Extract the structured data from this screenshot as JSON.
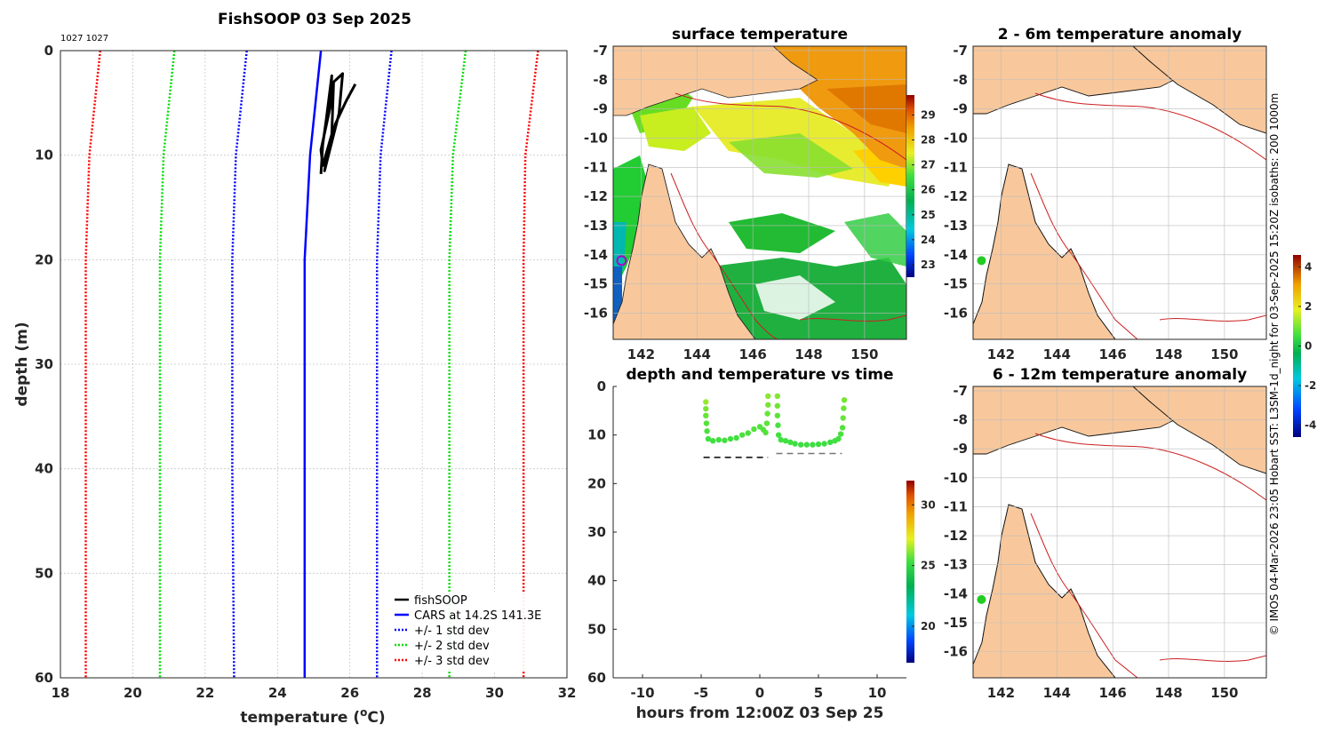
{
  "colors": {
    "fishsoop": "#000000",
    "cars": "#0000ff",
    "std1": "#0000ff",
    "std2": "#00dd00",
    "std3": "#ff0000",
    "land": "#f8c89c",
    "isobath": "#cc2020"
  },
  "chart_data": [
    {
      "type": "line",
      "id": "profile",
      "title": "FishSOOP 03 Sep 2025",
      "subtitle": "1027 1027",
      "xlabel": "temperature (°C)",
      "ylabel": "depth (m)",
      "xlim": [
        18,
        32
      ],
      "ylim": [
        0,
        60
      ],
      "y_reversed": true,
      "xticks": [
        "18",
        "20",
        "22",
        "24",
        "26",
        "28",
        "30",
        "32"
      ],
      "yticks": [
        "0",
        "10",
        "20",
        "30",
        "40",
        "50",
        "60"
      ],
      "series": [
        {
          "name": "fishSOOP",
          "style": "solid",
          "color": "#000000",
          "x": [
            25.2,
            25.25,
            25.35,
            25.5,
            25.45,
            25.2,
            25.25,
            25.5,
            25.55,
            25.8,
            25.7,
            25.3,
            25.35,
            25.6,
            25.9,
            26.15
          ],
          "y": [
            11.8,
            9.0,
            6.5,
            2.4,
            5.5,
            9.5,
            11.0,
            8.0,
            3.0,
            2.2,
            6.0,
            11.5,
            10.5,
            7.0,
            4.8,
            3.2
          ]
        },
        {
          "name": "CARS at 14.2S 141.3E",
          "style": "solid",
          "color": "#0000ff",
          "x": [
            25.2,
            24.9,
            24.75,
            24.75,
            24.75
          ],
          "y": [
            0,
            10,
            20,
            40,
            60
          ]
        },
        {
          "name": "+/- 1 std dev",
          "style": "dotted",
          "color": "#0000ff",
          "x": [
            23.15,
            22.85,
            22.75,
            22.75,
            22.8
          ],
          "y": [
            0,
            10,
            20,
            40,
            60
          ],
          "x2": [
            27.15,
            26.85,
            26.75,
            26.75,
            26.75
          ],
          "y2": [
            0,
            10,
            20,
            40,
            60
          ]
        },
        {
          "name": "+/- 2 std dev",
          "style": "dotted",
          "color": "#00dd00",
          "x": [
            21.15,
            20.85,
            20.75,
            20.75,
            20.75
          ],
          "y": [
            0,
            10,
            20,
            40,
            60
          ],
          "x2": [
            29.2,
            28.85,
            28.75,
            28.75,
            28.75
          ],
          "y2": [
            0,
            10,
            20,
            40,
            60
          ]
        },
        {
          "name": "+/- 3 std dev",
          "style": "dotted",
          "color": "#ff0000",
          "x": [
            19.1,
            18.8,
            18.7,
            18.7,
            18.7
          ],
          "y": [
            0,
            10,
            20,
            40,
            60
          ],
          "x2": [
            31.2,
            30.85,
            30.8,
            30.8,
            30.8
          ],
          "y2": [
            0,
            10,
            20,
            40,
            60
          ]
        }
      ]
    },
    {
      "type": "heatmap",
      "id": "sst",
      "title": "surface temperature",
      "xticks": [
        "142",
        "144",
        "146",
        "148",
        "150"
      ],
      "yticks": [
        "-7",
        "-8",
        "-9",
        "-10",
        "-11",
        "-12",
        "-13",
        "-14",
        "-15",
        "-16"
      ],
      "colorbar_ticks": [
        "23",
        "24",
        "25",
        "26",
        "27",
        "28",
        "29"
      ],
      "colorbar_range": [
        22.5,
        29.8
      ],
      "marker": {
        "lon": 141.3,
        "lat": -14.2
      }
    },
    {
      "type": "scatter",
      "id": "timeseries",
      "title": "depth and temperature vs time",
      "xlabel": "hours from 12:00Z 03 Sep 25",
      "xlim": [
        -12.5,
        12.5
      ],
      "ylim": [
        0,
        60
      ],
      "y_reversed": true,
      "xticks": [
        "-10",
        "-5",
        "0",
        "5",
        "10"
      ],
      "yticks": [
        "0",
        "10",
        "20",
        "30",
        "40",
        "50",
        "60"
      ],
      "colorbar_ticks": [
        "20",
        "25",
        "30"
      ],
      "colorbar_range": [
        17,
        32
      ],
      "bottom_depth_segments": [
        {
          "x0": -4.8,
          "x1": 0.7,
          "depth": 14.6,
          "color": "#000000"
        },
        {
          "x0": 1.4,
          "x1": 7.0,
          "depth": 13.8,
          "color": "#777777"
        }
      ],
      "series": [
        {
          "name": "drop 1",
          "x": [
            -4.6,
            -4.6,
            -4.6,
            -4.55,
            -4.5,
            -4.4,
            -4.0,
            -3.5,
            -3.0,
            -2.5,
            -2.0,
            -1.5,
            -1.0,
            -0.5,
            0.0,
            0.3,
            0.5,
            0.6,
            0.65,
            0.7,
            0.7
          ],
          "y": [
            3.2,
            4.6,
            6.0,
            7.6,
            9.2,
            10.8,
            11.2,
            11.0,
            11.1,
            10.8,
            10.6,
            10.0,
            9.6,
            8.8,
            8.3,
            8.9,
            9.5,
            7.6,
            5.6,
            3.8,
            2.0
          ],
          "temp": [
            26.3,
            26.0,
            25.8,
            25.6,
            25.5,
            25.4,
            25.4,
            25.4,
            25.4,
            25.4,
            25.4,
            25.5,
            25.5,
            25.6,
            25.6,
            25.6,
            25.6,
            25.7,
            25.8,
            26.0,
            26.2
          ]
        },
        {
          "name": "drop 2",
          "x": [
            1.5,
            1.5,
            1.5,
            1.55,
            1.6,
            1.8,
            2.2,
            2.6,
            3.0,
            3.5,
            4.0,
            4.5,
            5.0,
            5.5,
            6.0,
            6.4,
            6.7,
            6.9,
            7.05,
            7.1,
            7.15,
            7.2
          ],
          "y": [
            2.0,
            4.0,
            6.0,
            8.0,
            10.0,
            11.0,
            11.2,
            11.5,
            11.8,
            12.0,
            12.0,
            12.0,
            11.9,
            11.8,
            11.5,
            11.2,
            10.8,
            9.8,
            8.5,
            6.5,
            4.5,
            2.8
          ],
          "temp": [
            26.1,
            25.9,
            25.7,
            25.5,
            25.4,
            25.4,
            25.4,
            25.4,
            25.3,
            25.3,
            25.3,
            25.3,
            25.3,
            25.3,
            25.3,
            25.4,
            25.4,
            25.5,
            25.6,
            25.8,
            25.9,
            26.0
          ]
        }
      ]
    },
    {
      "type": "heatmap",
      "id": "anom1",
      "title": "2 - 6m temperature anomaly",
      "xticks": [
        "142",
        "144",
        "146",
        "148",
        "150"
      ],
      "yticks": [
        "-7",
        "-8",
        "-9",
        "-10",
        "-11",
        "-12",
        "-13",
        "-14",
        "-15",
        "-16"
      ],
      "colorbar_ticks": [
        "4",
        "2",
        "0",
        "-2",
        "-4"
      ],
      "colorbar_range": [
        -4.6,
        4.6
      ],
      "marker": {
        "lon": 141.3,
        "lat": -14.2,
        "anomaly": 0.3
      }
    },
    {
      "type": "heatmap",
      "id": "anom2",
      "title": "6 - 12m temperature anomaly",
      "xticks": [
        "142",
        "144",
        "146",
        "148",
        "150"
      ],
      "yticks": [
        "-7",
        "-8",
        "-9",
        "-10",
        "-11",
        "-12",
        "-13",
        "-14",
        "-15",
        "-16"
      ],
      "marker": {
        "lon": 141.3,
        "lat": -14.2,
        "anomaly": 0.3
      }
    }
  ],
  "legend": {
    "items": [
      "fishSOOP",
      "CARS at 14.2S 141.3E",
      "+/- 1 std dev",
      "+/- 2 std dev",
      "+/- 3 std dev"
    ]
  },
  "side_caption": "© IMOS 04-Mar-2026 23:05 Hobart SST: L3SM-1d_night for 03-Sep-2025 15:20Z isobaths: 200  1000m"
}
